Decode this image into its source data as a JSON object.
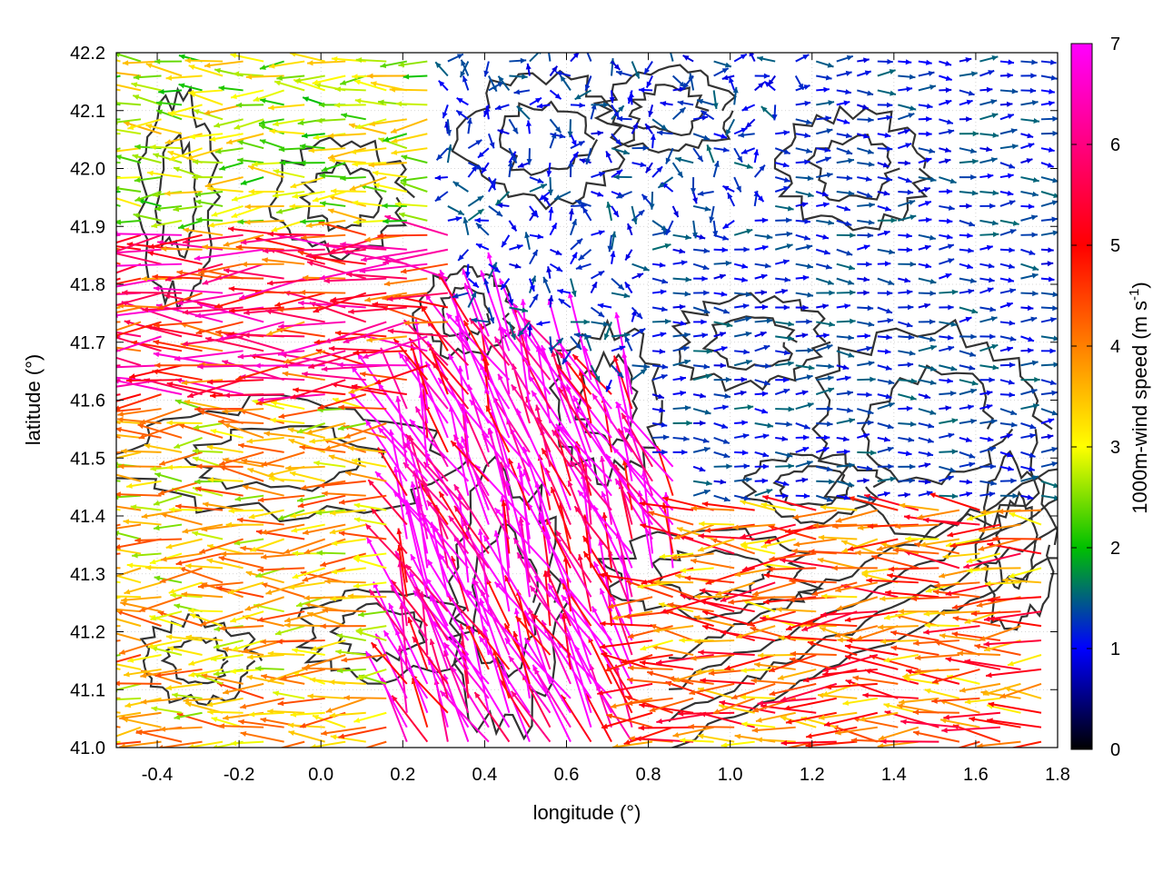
{
  "chart_data": {
    "type": "vector-field",
    "xlabel": "longitude (°)",
    "ylabel": "latitude (°)",
    "xlim": [
      -0.5,
      1.8
    ],
    "ylim": [
      41.0,
      42.2
    ],
    "xticks": [
      "-0.4",
      "-0.2",
      "0.0",
      "0.2",
      "0.4",
      "0.6",
      "0.8",
      "1.0",
      "1.2",
      "1.4",
      "1.6",
      "1.8"
    ],
    "yticks": [
      "41.0",
      "41.1",
      "41.2",
      "41.3",
      "41.4",
      "41.5",
      "41.6",
      "41.7",
      "41.8",
      "41.9",
      "42.0",
      "42.1",
      "42.2"
    ],
    "grid": true,
    "colorbar": {
      "label": "1000m-wind speed (m s",
      "label_superscript": "-1",
      "label_suffix": ")",
      "range": [
        0,
        7
      ],
      "ticks": [
        "0",
        "1",
        "2",
        "3",
        "4",
        "5",
        "6",
        "7"
      ],
      "colors": [
        "#000000",
        "#0000ff",
        "#00c000",
        "#ffff00",
        "#ff8000",
        "#ff0000",
        "#ff00ff"
      ]
    },
    "wind_regions": [
      {
        "region": "northwest",
        "lon": [
          -0.5,
          0.3
        ],
        "lat": [
          41.9,
          42.2
        ],
        "speed_mps": 2.8,
        "direction": "westward"
      },
      {
        "region": "west-band",
        "lon": [
          -0.5,
          0.3
        ],
        "lat": [
          41.7,
          41.9
        ],
        "speed_mps": 5.2,
        "direction": "westward"
      },
      {
        "region": "southwest",
        "lon": [
          -0.5,
          0.2
        ],
        "lat": [
          41.0,
          41.6
        ],
        "speed_mps": 3.5,
        "direction": "westward"
      },
      {
        "region": "central-jet",
        "lon": [
          0.2,
          0.7
        ],
        "lat": [
          41.0,
          41.6
        ],
        "speed_mps": 6.8,
        "direction": "north-westward"
      },
      {
        "region": "north-centre",
        "lon": [
          0.3,
          1.1
        ],
        "lat": [
          41.9,
          42.2
        ],
        "speed_mps": 1.2,
        "direction": "variable"
      },
      {
        "region": "east",
        "lon": [
          0.8,
          1.8
        ],
        "lat": [
          41.5,
          41.9
        ],
        "speed_mps": 1.2,
        "direction": "eastward"
      },
      {
        "region": "southeast",
        "lon": [
          0.8,
          1.8
        ],
        "lat": [
          41.0,
          41.3
        ],
        "speed_mps": 4.3,
        "direction": "westward"
      }
    ]
  }
}
